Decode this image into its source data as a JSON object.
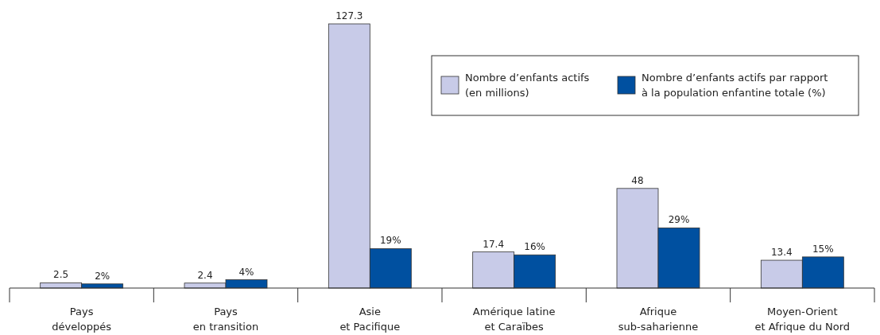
{
  "chart_data": {
    "type": "bar",
    "categories": [
      "Pays\ndéveloppés",
      "Pays\nen transition",
      "Asie\net Pacifique",
      "Amérique latine\net Caraïbes",
      "Afrique\nsub-saharienne",
      "Moyen-Orient\net Afrique du Nord"
    ],
    "series": [
      {
        "name": "Nombre d’enfants actifs\n(en millions)",
        "color": "#c8cbe8",
        "values": [
          2.5,
          2.4,
          127.3,
          17.4,
          48,
          13.4
        ],
        "value_labels": [
          "2.5",
          "2.4",
          "127.3",
          "17.4",
          "48",
          "13.4"
        ]
      },
      {
        "name": "Nombre d’enfants actifs par rapport\nà la population enfantine totale (%)",
        "color": "#0050a0",
        "values": [
          2,
          4,
          19,
          16,
          29,
          15
        ],
        "value_labels": [
          "2%",
          "4%",
          "19%",
          "16%",
          "29%",
          "15%"
        ]
      }
    ],
    "legend": "top right"
  }
}
